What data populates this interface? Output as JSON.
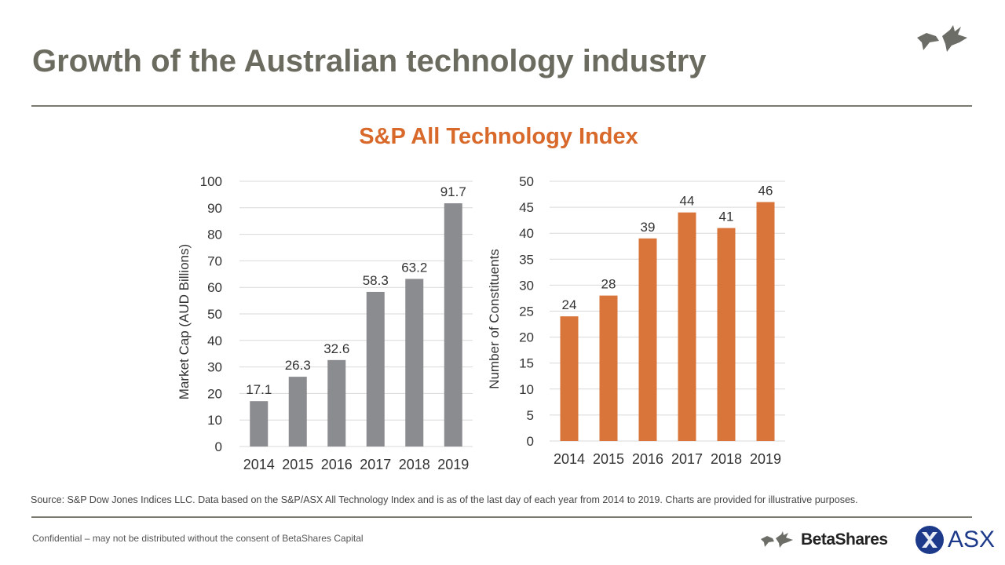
{
  "slide": {
    "title": "Growth of the Australian technology industry",
    "subtitle": "S&P All Technology Index",
    "source": "Source: S&P Dow Jones Indices LLC. Data based on the S&P/ASX All Technology Index and is as of the last day of each year from 2014 to 2019. Charts are provided for illustrative purposes.",
    "confidential": "Confidential – may not be distributed without the consent of BetaShares Capital",
    "logos": {
      "betashares": "BetaShares",
      "asx": "ASX"
    }
  },
  "chart_data": [
    {
      "type": "bar",
      "categories": [
        "2014",
        "2015",
        "2016",
        "2017",
        "2018",
        "2019"
      ],
      "values": [
        17.1,
        26.3,
        32.6,
        58.3,
        63.2,
        91.7
      ],
      "data_labels": [
        "17.1",
        "26.3",
        "32.6",
        "58.3",
        "63.2",
        "91.7"
      ],
      "ylabel": "Market Cap (AUD Billions)",
      "ylim": [
        0,
        100
      ],
      "yticks": [
        "0",
        "10",
        "20",
        "30",
        "40",
        "50",
        "60",
        "70",
        "80",
        "90",
        "100"
      ],
      "grid": true,
      "color": "#8b8c90"
    },
    {
      "type": "bar",
      "categories": [
        "2014",
        "2015",
        "2016",
        "2017",
        "2018",
        "2019"
      ],
      "values": [
        24,
        28,
        39,
        44,
        41,
        46
      ],
      "data_labels": [
        "24",
        "28",
        "39",
        "44",
        "41",
        "46"
      ],
      "ylabel": "Number  of Constituents",
      "ylim": [
        0,
        50
      ],
      "yticks": [
        "0",
        "5",
        "10",
        "15",
        "20",
        "25",
        "30",
        "35",
        "40",
        "45",
        "50"
      ],
      "grid": true,
      "color": "#d9753b"
    }
  ]
}
